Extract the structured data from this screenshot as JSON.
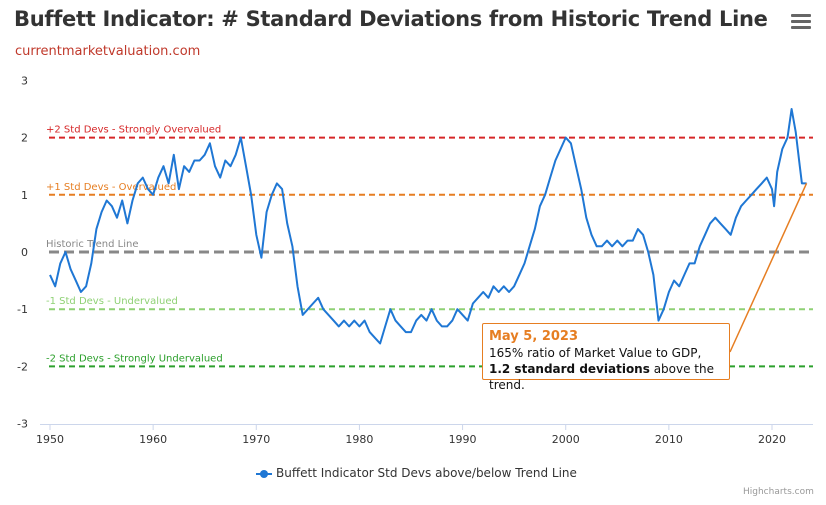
{
  "colors": {
    "series": "#1f77d4",
    "plus2": "#d62728",
    "plus1": "#e67e22",
    "trend": "#888888",
    "minus1": "#8fd175",
    "minus2": "#2ca02c",
    "callout": "#e67e22"
  },
  "menu": {
    "icon": "hamburger-menu-icon"
  },
  "chart_data": {
    "type": "line",
    "title": "Buffett Indicator: # Standard Deviations from Historic Trend Line",
    "subtitle": "currentmarketvaluation.com",
    "xlabel": "",
    "ylabel": "",
    "xlim": [
      1949.5,
      2024
    ],
    "ylim": [
      -3,
      3
    ],
    "grid": false,
    "xticks": [
      "1950",
      "1960",
      "1970",
      "1980",
      "1990",
      "2000",
      "2010",
      "2020"
    ],
    "yticks": [
      "3",
      "2",
      "1",
      "0",
      "-1",
      "-2",
      "-3"
    ],
    "legend_position": "bottom-center",
    "reference_lines": [
      {
        "y": 2,
        "label": "+2 Std Devs - Strongly Overvalued",
        "color": "#d62728"
      },
      {
        "y": 1,
        "label": "+1 Std Devs - Overvalued",
        "color": "#e67e22"
      },
      {
        "y": 0,
        "label": "Historic Trend Line",
        "color": "#888888"
      },
      {
        "y": -1,
        "label": "-1 Std Devs - Undervalued",
        "color": "#8fd175"
      },
      {
        "y": -2,
        "label": "-2 Std Devs - Strongly Undervalued",
        "color": "#2ca02c"
      }
    ],
    "series": [
      {
        "name": "Buffett Indicator Std Devs above/below Trend Line",
        "x": [
          1950.0,
          1950.5,
          1951.0,
          1951.5,
          1952.0,
          1952.5,
          1953.0,
          1953.5,
          1954.0,
          1954.5,
          1955.0,
          1955.5,
          1956.0,
          1956.5,
          1957.0,
          1957.5,
          1958.0,
          1958.5,
          1959.0,
          1959.5,
          1960.0,
          1960.5,
          1961.0,
          1961.5,
          1962.0,
          1962.5,
          1963.0,
          1963.5,
          1964.0,
          1964.5,
          1965.0,
          1965.5,
          1966.0,
          1966.5,
          1967.0,
          1967.5,
          1968.0,
          1968.5,
          1969.0,
          1969.5,
          1970.0,
          1970.5,
          1971.0,
          1971.5,
          1972.0,
          1972.5,
          1973.0,
          1973.5,
          1974.0,
          1974.5,
          1975.0,
          1975.5,
          1976.0,
          1976.5,
          1977.0,
          1977.5,
          1978.0,
          1978.5,
          1979.0,
          1979.5,
          1980.0,
          1980.5,
          1981.0,
          1981.5,
          1982.0,
          1982.5,
          1983.0,
          1983.5,
          1984.0,
          1984.5,
          1985.0,
          1985.5,
          1986.0,
          1986.5,
          1987.0,
          1987.5,
          1988.0,
          1988.5,
          1989.0,
          1989.5,
          1990.0,
          1990.5,
          1991.0,
          1991.5,
          1992.0,
          1992.5,
          1993.0,
          1993.5,
          1994.0,
          1994.5,
          1995.0,
          1995.5,
          1996.0,
          1996.5,
          1997.0,
          1997.5,
          1998.0,
          1998.5,
          1999.0,
          1999.5,
          2000.0,
          2000.5,
          2001.0,
          2001.5,
          2002.0,
          2002.5,
          2003.0,
          2003.5,
          2004.0,
          2004.5,
          2005.0,
          2005.5,
          2006.0,
          2006.5,
          2007.0,
          2007.5,
          2008.0,
          2008.5,
          2009.0,
          2009.5,
          2010.0,
          2010.5,
          2011.0,
          2011.5,
          2012.0,
          2012.5,
          2013.0,
          2013.5,
          2014.0,
          2014.5,
          2015.0,
          2015.5,
          2016.0,
          2016.5,
          2017.0,
          2017.5,
          2018.0,
          2018.5,
          2019.0,
          2019.5,
          2020.0,
          2020.2,
          2020.5,
          2021.0,
          2021.5,
          2021.9,
          2022.3,
          2022.7,
          2022.9,
          2023.1,
          2023.35
        ],
        "values": [
          -0.4,
          -0.6,
          -0.2,
          0.0,
          -0.3,
          -0.5,
          -0.7,
          -0.6,
          -0.2,
          0.4,
          0.7,
          0.9,
          0.8,
          0.6,
          0.9,
          0.5,
          0.9,
          1.2,
          1.3,
          1.1,
          1.0,
          1.3,
          1.5,
          1.2,
          1.7,
          1.1,
          1.5,
          1.4,
          1.6,
          1.6,
          1.7,
          1.9,
          1.5,
          1.3,
          1.6,
          1.5,
          1.7,
          2.0,
          1.5,
          1.0,
          0.3,
          -0.1,
          0.7,
          1.0,
          1.2,
          1.1,
          0.5,
          0.1,
          -0.6,
          -1.1,
          -1.0,
          -0.9,
          -0.8,
          -1.0,
          -1.1,
          -1.2,
          -1.3,
          -1.2,
          -1.3,
          -1.2,
          -1.3,
          -1.2,
          -1.4,
          -1.5,
          -1.6,
          -1.3,
          -1.0,
          -1.2,
          -1.3,
          -1.4,
          -1.4,
          -1.2,
          -1.1,
          -1.2,
          -1.0,
          -1.2,
          -1.3,
          -1.3,
          -1.2,
          -1.0,
          -1.1,
          -1.2,
          -0.9,
          -0.8,
          -0.7,
          -0.8,
          -0.6,
          -0.7,
          -0.6,
          -0.7,
          -0.6,
          -0.4,
          -0.2,
          0.1,
          0.4,
          0.8,
          1.0,
          1.3,
          1.6,
          1.8,
          2.0,
          1.9,
          1.5,
          1.1,
          0.6,
          0.3,
          0.1,
          0.1,
          0.2,
          0.1,
          0.2,
          0.1,
          0.2,
          0.2,
          0.4,
          0.3,
          0.0,
          -0.4,
          -1.2,
          -1.0,
          -0.7,
          -0.5,
          -0.6,
          -0.4,
          -0.2,
          -0.2,
          0.1,
          0.3,
          0.5,
          0.6,
          0.5,
          0.4,
          0.3,
          0.6,
          0.8,
          0.9,
          1.0,
          1.1,
          1.2,
          1.3,
          1.1,
          0.8,
          1.4,
          1.8,
          2.0,
          2.5,
          2.1,
          1.5,
          1.2,
          1.2,
          1.2
        ]
      }
    ],
    "annotation": {
      "x": 2023.35,
      "y": 1.2,
      "title": "May 5, 2023",
      "line1": "165% ratio of Market Value to GDP,",
      "line2_bold": "1.2 standard deviations",
      "line2_rest": " above the trend."
    }
  },
  "credits": "Highcharts.com"
}
